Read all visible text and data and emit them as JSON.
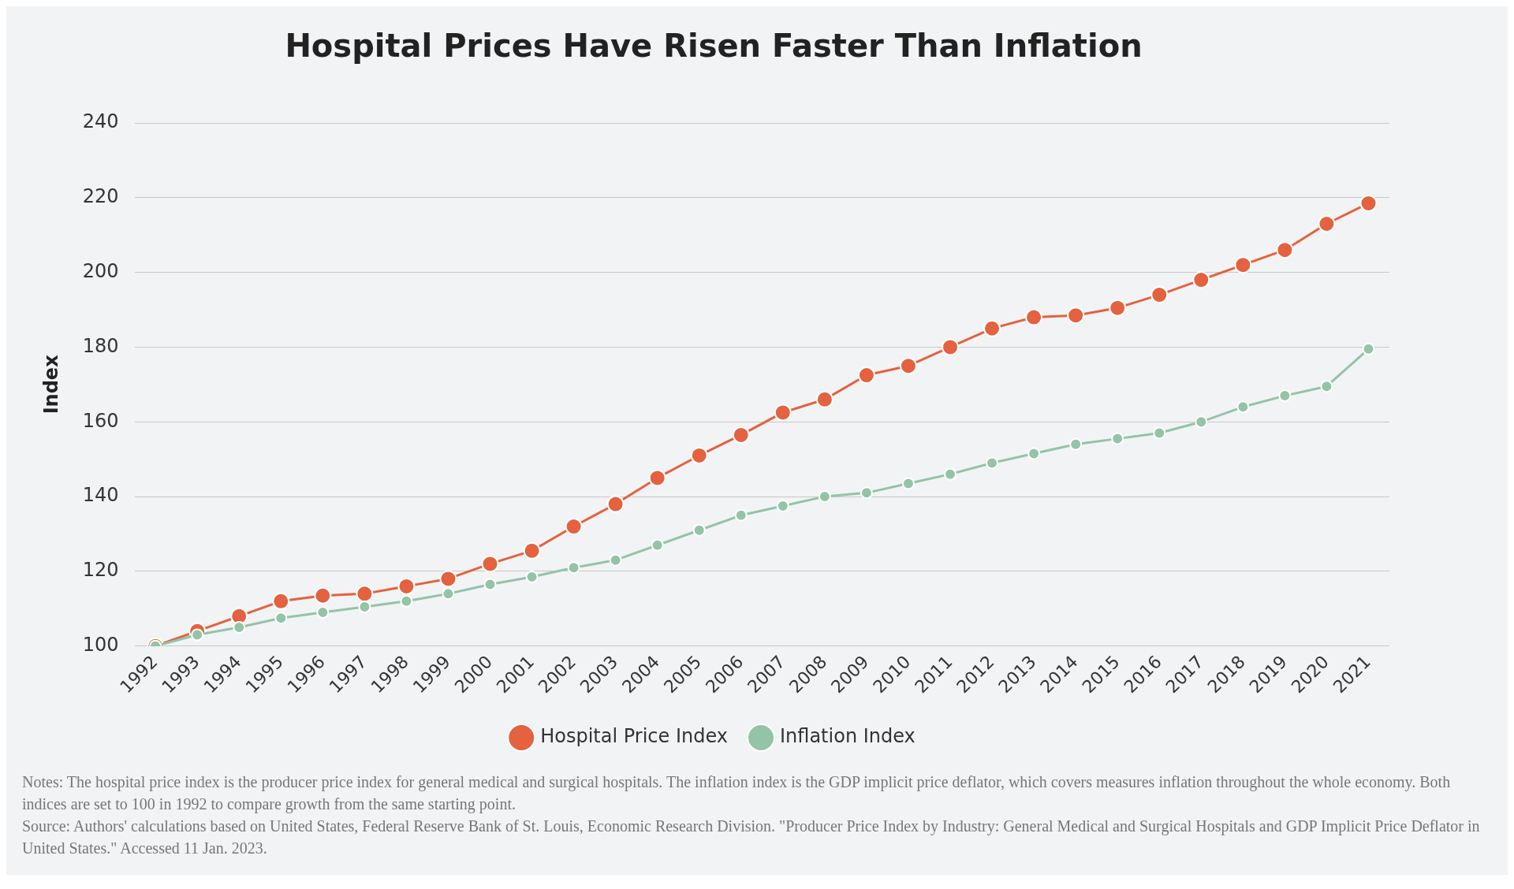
{
  "chart_data": {
    "type": "line",
    "title": "Hospital Prices Have Risen Faster Than Inflation",
    "ylabel": "Index",
    "categories": [
      "1992",
      "1993",
      "1994",
      "1995",
      "1996",
      "1997",
      "1998",
      "1999",
      "2000",
      "2001",
      "2002",
      "2003",
      "2004",
      "2005",
      "2006",
      "2007",
      "2008",
      "2009",
      "2010",
      "2011",
      "2012",
      "2013",
      "2014",
      "2015",
      "2016",
      "2017",
      "2018",
      "2019",
      "2020",
      "2021"
    ],
    "series": [
      {
        "name": "Hospital Price Index",
        "color": "#e4623f",
        "values": [
          100,
          104,
          108,
          112,
          113.5,
          114,
          116,
          118,
          122,
          125.5,
          132,
          138,
          145,
          151,
          156.5,
          162.5,
          166,
          172.5,
          175,
          180,
          185,
          188,
          188.5,
          190.5,
          194,
          198,
          202,
          206,
          213,
          218.5
        ]
      },
      {
        "name": "Inflation Index",
        "color": "#93c4a7",
        "values": [
          100,
          103,
          105,
          107.5,
          109,
          110.5,
          112,
          114,
          116.5,
          118.5,
          121,
          123,
          127,
          131,
          135,
          137.5,
          140,
          141,
          143.5,
          146,
          149,
          151.5,
          154,
          155.5,
          157,
          160,
          164,
          167,
          169.5,
          179.5
        ]
      }
    ],
    "ylim": [
      100,
      240
    ],
    "yticks": [
      100,
      120,
      140,
      160,
      180,
      200,
      220,
      240
    ],
    "grid": "y",
    "legend": "bottom",
    "marker": "circle",
    "line_style": "solid",
    "annotations": [
      "Notes: The hospital price index is the producer price index for general medical and surgical hospitals. The inflation index is the GDP implicit price deflator, which covers measures inflation throughout the whole economy. Both indices are set to 100 in 1992 to compare growth from the same starting point.",
      "Source: Authors' calculations based on United States, Federal Reserve Bank of St. Louis, Economic Research Division. \"Producer Price Index by Industry: General Medical and Surgical Hospitals and GDP Implicit Price Deflator in United States.\" Accessed 11 Jan. 2023."
    ]
  }
}
